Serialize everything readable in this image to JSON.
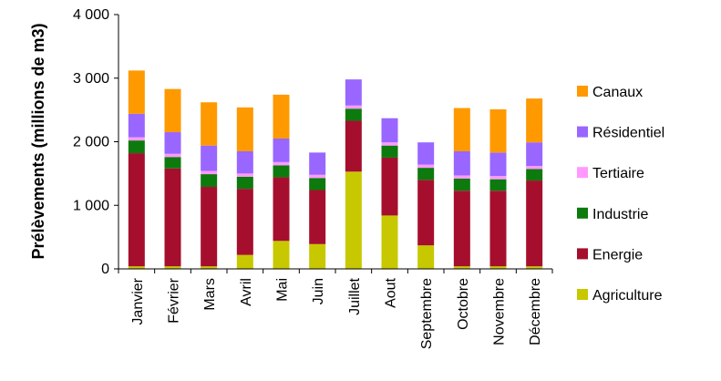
{
  "chart_data": {
    "type": "bar",
    "stacked": true,
    "title": "",
    "xlabel": "",
    "ylabel": "Prélèvements (millions de m3)",
    "ylim": [
      0,
      4000
    ],
    "yticks": [
      0,
      1000,
      2000,
      3000,
      4000
    ],
    "ytick_labels": [
      "0",
      "1 000",
      "2 000",
      "3 000",
      "4 000"
    ],
    "grid": false,
    "legend_position": "right",
    "categories": [
      "Janvier",
      "Février",
      "Mars",
      "Avril",
      "Mai",
      "Juin",
      "Juillet",
      "Aout",
      "Septembre",
      "Octobre",
      "Novembre",
      "Décembre"
    ],
    "series": [
      {
        "name": "Agriculture",
        "color": "#c8c800",
        "values": [
          40,
          40,
          40,
          220,
          440,
          390,
          1530,
          840,
          370,
          40,
          40,
          40
        ]
      },
      {
        "name": "Energie",
        "color": "#a50f2d",
        "values": [
          1780,
          1540,
          1250,
          1040,
          1000,
          850,
          800,
          910,
          1030,
          1190,
          1190,
          1350
        ]
      },
      {
        "name": "Industrie",
        "color": "#0d7a0d",
        "values": [
          200,
          180,
          200,
          190,
          190,
          190,
          190,
          190,
          190,
          190,
          180,
          180
        ]
      },
      {
        "name": "Tertiaire",
        "color": "#ff99ff",
        "values": [
          50,
          50,
          50,
          50,
          50,
          50,
          50,
          50,
          50,
          50,
          50,
          50
        ]
      },
      {
        "name": "Résidentiel",
        "color": "#9966ff",
        "values": [
          370,
          340,
          400,
          350,
          370,
          350,
          410,
          380,
          350,
          380,
          370,
          370
        ]
      },
      {
        "name": "Canaux",
        "color": "#ff9900",
        "values": [
          680,
          680,
          680,
          690,
          690,
          0,
          0,
          0,
          0,
          680,
          680,
          690
        ]
      }
    ]
  }
}
